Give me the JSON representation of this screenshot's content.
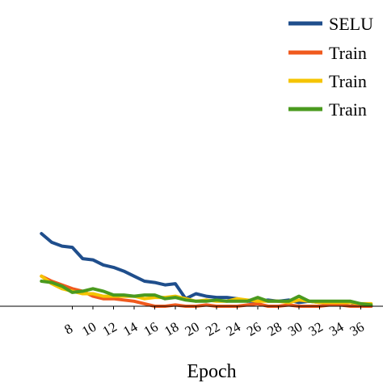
{
  "chart_data": {
    "type": "line",
    "xlabel": "Epoch",
    "ylabel": "",
    "x_tick_labels": [
      "8",
      "10",
      "12",
      "14",
      "16",
      "18",
      "20",
      "22",
      "24",
      "26",
      "28",
      "30",
      "32",
      "34",
      "36"
    ],
    "legend_position": "top-right",
    "grid": false,
    "series": [
      {
        "name": "SELU",
        "color": "#1f4e8c",
        "x": [
          5,
          6,
          7,
          8,
          9,
          10,
          11,
          12,
          13,
          14,
          15,
          16,
          17,
          18,
          19,
          20,
          21,
          22,
          23,
          24,
          25,
          26,
          27,
          28,
          29,
          30,
          31,
          32,
          33,
          34,
          35,
          36,
          37
        ],
        "values": [
          0.29,
          0.255,
          0.24,
          0.235,
          0.19,
          0.185,
          0.165,
          0.155,
          0.14,
          0.12,
          0.1,
          0.095,
          0.085,
          0.09,
          0.03,
          0.05,
          0.04,
          0.035,
          0.035,
          0.03,
          0.02,
          0.02,
          0.025,
          0.02,
          0.025,
          0.015,
          0.02,
          0.015,
          0.015,
          0.015,
          0.015,
          0.0,
          0.0
        ]
      },
      {
        "name": "Train",
        "color": "#f05a1e",
        "x": [
          5,
          6,
          7,
          8,
          9,
          10,
          11,
          12,
          13,
          14,
          15,
          16,
          17,
          18,
          19,
          20,
          21,
          22,
          23,
          24,
          25,
          26,
          27,
          28,
          29,
          30,
          31,
          32,
          33,
          34,
          35,
          36,
          37
        ],
        "values": [
          0.12,
          0.1,
          0.085,
          0.07,
          0.06,
          0.04,
          0.03,
          0.03,
          0.025,
          0.02,
          0.01,
          0.0,
          0.0,
          0.005,
          0.0,
          0.0,
          0.005,
          0.0,
          0.0,
          0.0,
          0.005,
          0.01,
          0.0,
          0.0,
          0.005,
          0.0,
          0.0,
          0.0,
          0.005,
          0.005,
          0.0,
          0.0,
          0.0
        ]
      },
      {
        "name": "Train",
        "color": "#f5c400",
        "x": [
          5,
          6,
          7,
          8,
          9,
          10,
          11,
          12,
          13,
          14,
          15,
          16,
          17,
          18,
          19,
          20,
          21,
          22,
          23,
          24,
          25,
          26,
          27,
          28,
          29,
          30,
          31,
          32,
          33,
          34,
          35,
          36,
          37
        ],
        "values": [
          0.12,
          0.09,
          0.07,
          0.06,
          0.05,
          0.05,
          0.04,
          0.04,
          0.04,
          0.04,
          0.03,
          0.035,
          0.035,
          0.04,
          0.03,
          0.02,
          0.025,
          0.02,
          0.02,
          0.03,
          0.025,
          0.02,
          0.02,
          0.02,
          0.015,
          0.025,
          0.02,
          0.015,
          0.015,
          0.015,
          0.015,
          0.01,
          0.01
        ]
      },
      {
        "name": "Train",
        "color": "#4a9a1e",
        "x": [
          5,
          6,
          7,
          8,
          9,
          10,
          11,
          12,
          13,
          14,
          15,
          16,
          17,
          18,
          19,
          20,
          21,
          22,
          23,
          24,
          25,
          26,
          27,
          28,
          29,
          30,
          31,
          32,
          33,
          34,
          35,
          36,
          37
        ],
        "values": [
          0.1,
          0.095,
          0.08,
          0.055,
          0.06,
          0.07,
          0.06,
          0.045,
          0.045,
          0.04,
          0.045,
          0.045,
          0.03,
          0.035,
          0.025,
          0.02,
          0.02,
          0.025,
          0.02,
          0.02,
          0.02,
          0.035,
          0.02,
          0.02,
          0.02,
          0.04,
          0.02,
          0.02,
          0.02,
          0.02,
          0.02,
          0.01,
          0.005
        ]
      }
    ]
  }
}
